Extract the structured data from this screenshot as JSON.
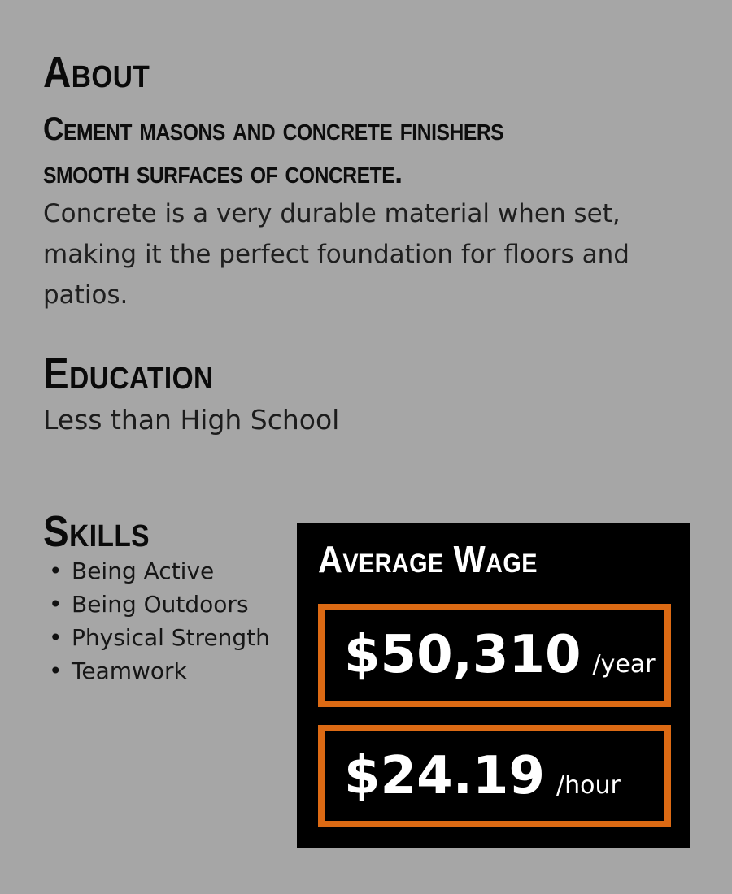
{
  "colors": {
    "background": "#a6a6a6",
    "card_background": "#000000",
    "accent_orange": "#dc6a14",
    "heading_text": "#0a0a0a",
    "body_text": "#1f1f1f",
    "card_text": "#ffffff"
  },
  "about": {
    "heading": "About",
    "subheading_lines": [
      "Cement masons and concrete finishers",
      "smooth surfaces of concrete."
    ],
    "description_lines": [
      "Concrete is a very durable material when set,",
      "making it the perfect foundation for floors and",
      "patios."
    ]
  },
  "education": {
    "heading": "Education",
    "value": "Less than High School"
  },
  "skills": {
    "heading": "Skills",
    "bullet": "•",
    "items": [
      "Being Active",
      "Being Outdoors",
      "Physical Strength",
      "Teamwork"
    ]
  },
  "wage": {
    "heading": "Average Wage",
    "yearly": {
      "amount": "$50,310",
      "unit": "/year"
    },
    "hourly": {
      "amount": "$24.19",
      "unit": "/hour"
    }
  }
}
